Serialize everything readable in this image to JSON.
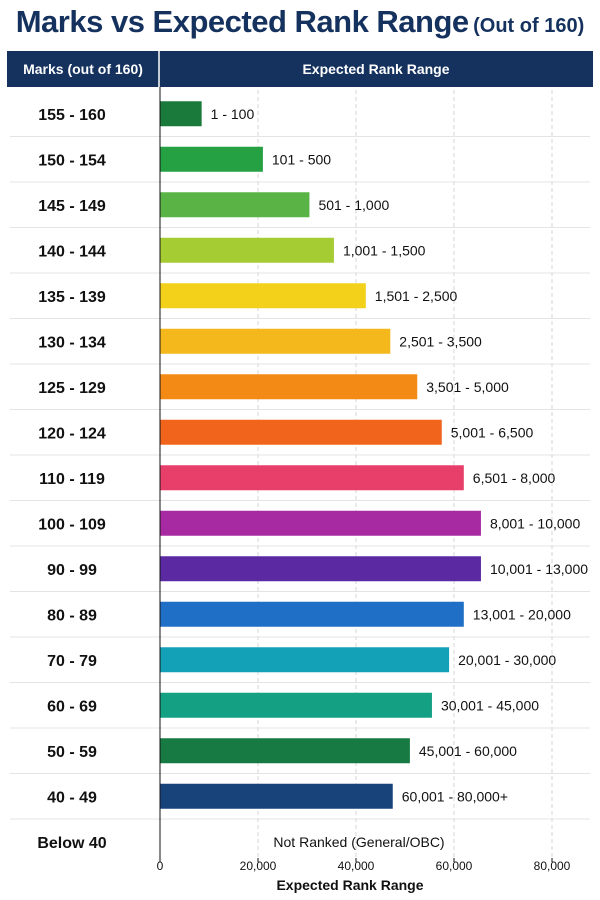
{
  "chart_data": {
    "type": "bar",
    "orientation": "horizontal",
    "title": "Marks vs Expected Rank Range",
    "subtitle": "(Out of 160)",
    "header_left": "Marks (out of 160)",
    "header_right": "Expected Rank Range",
    "xlabel": "Expected Rank Range",
    "xlim": [
      0,
      80000
    ],
    "xticks": [
      "0",
      "20,000",
      "40,000",
      "60,000",
      "80,000"
    ],
    "xtick_values": [
      0,
      20000,
      40000,
      60000,
      80000
    ],
    "grid": true,
    "categories": [
      "155 - 160",
      "150 - 154",
      "145 - 149",
      "140 - 144",
      "135 - 139",
      "130 - 134",
      "125 - 129",
      "120 - 124",
      "110 - 119",
      "100 - 109",
      "90 - 99",
      "80 - 89",
      "70 - 79",
      "60 - 69",
      "50 - 59",
      "40 - 49",
      "Below 40"
    ],
    "values": [
      8500,
      21000,
      30500,
      35500,
      42000,
      47000,
      52500,
      57500,
      62000,
      65500,
      65500,
      62000,
      59000,
      55500,
      51000,
      47500,
      null
    ],
    "value_labels": [
      "1 - 100",
      "101 - 500",
      "501 - 1,000",
      "1,001 - 1,500",
      "1,501 - 2,500",
      "2,501 - 3,500",
      "3,501 - 5,000",
      "5,001 - 6,500",
      "6,501 - 8,000",
      "8,001 - 10,000",
      "10,001 - 13,000",
      "13,001 - 20,000",
      "20,001 - 30,000",
      "30,001 - 45,000",
      "45,001 - 60,000",
      "60,001 - 80,000+",
      "Not Ranked (General/OBC)"
    ],
    "colors": [
      "#1a7a3c",
      "#25a043",
      "#5ab445",
      "#a6cc33",
      "#f3d01a",
      "#f4b81c",
      "#f48a16",
      "#f0651b",
      "#e83f6a",
      "#a82aa3",
      "#5b2aa3",
      "#1e6fc5",
      "#13a1b7",
      "#14a083",
      "#177a42",
      "#17427a",
      null
    ],
    "header_color": "#15325f"
  }
}
